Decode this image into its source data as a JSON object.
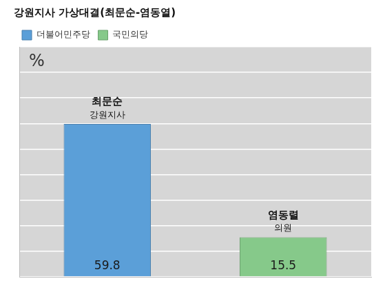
{
  "chart_data": {
    "type": "bar",
    "title": "강원지사 가상대결(최문순-염동열)",
    "ylabel": "%",
    "categories": [
      "최문순",
      "염동렬"
    ],
    "annotations": [
      "강원지사",
      "의원"
    ],
    "series": [
      {
        "name": "더불어민주당",
        "color": "#5b9fd8",
        "values": [
          59.8,
          null
        ]
      },
      {
        "name": "국민의당",
        "color": "#86c98a",
        "values": [
          null,
          15.5
        ]
      }
    ],
    "ylim": [
      0,
      90
    ],
    "yticks": [
      0,
      10,
      20,
      30,
      40,
      50,
      60,
      70,
      80,
      90
    ],
    "grid": true,
    "legend": "top-left",
    "data_labels": true,
    "tick_labels": false
  }
}
